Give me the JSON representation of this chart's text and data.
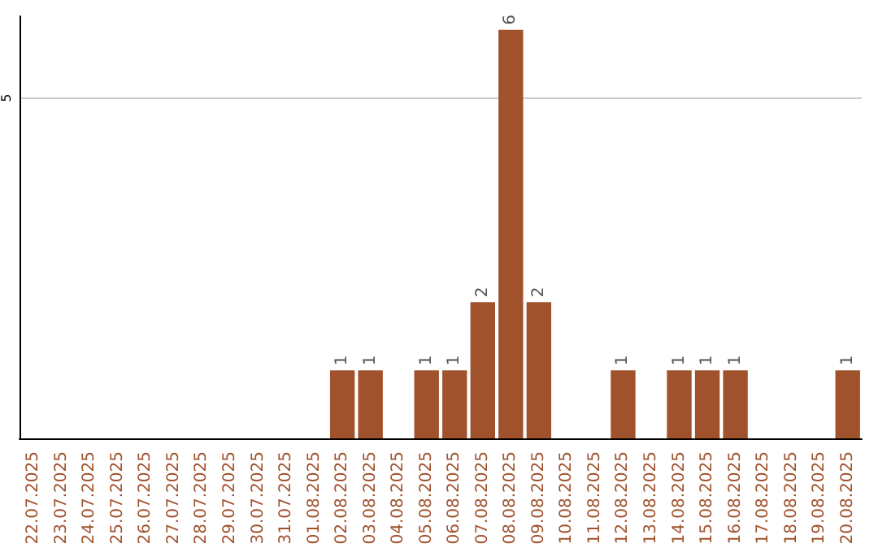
{
  "chart_data": {
    "type": "bar",
    "categories": [
      "22.07.2025",
      "23.07.2025",
      "24.07.2025",
      "25.07.2025",
      "26.07.2025",
      "27.07.2025",
      "28.07.2025",
      "29.07.2025",
      "30.07.2025",
      "31.07.2025",
      "01.08.2025",
      "02.08.2025",
      "03.08.2025",
      "04.08.2025",
      "05.08.2025",
      "06.08.2025",
      "07.08.2025",
      "08.08.2025",
      "09.08.2025",
      "10.08.2025",
      "11.08.2025",
      "12.08.2025",
      "13.08.2025",
      "14.08.2025",
      "15.08.2025",
      "16.08.2025",
      "17.08.2025",
      "18.08.2025",
      "19.08.2025",
      "20.08.2025"
    ],
    "values": [
      0,
      0,
      0,
      0,
      0,
      0,
      0,
      0,
      0,
      0,
      0,
      1,
      1,
      0,
      1,
      1,
      2,
      6,
      2,
      0,
      0,
      1,
      0,
      1,
      1,
      1,
      0,
      0,
      0,
      1
    ],
    "value_labels": [
      null,
      null,
      null,
      null,
      null,
      null,
      null,
      null,
      null,
      null,
      null,
      "1",
      "1",
      null,
      "1",
      "1",
      "2",
      "6",
      "2",
      null,
      null,
      "1",
      null,
      "1",
      "1",
      "1",
      null,
      null,
      null,
      "1"
    ],
    "color": "#a0522d",
    "ylim": [
      0,
      6.2
    ],
    "yticks": [
      5
    ],
    "grid": "y"
  }
}
